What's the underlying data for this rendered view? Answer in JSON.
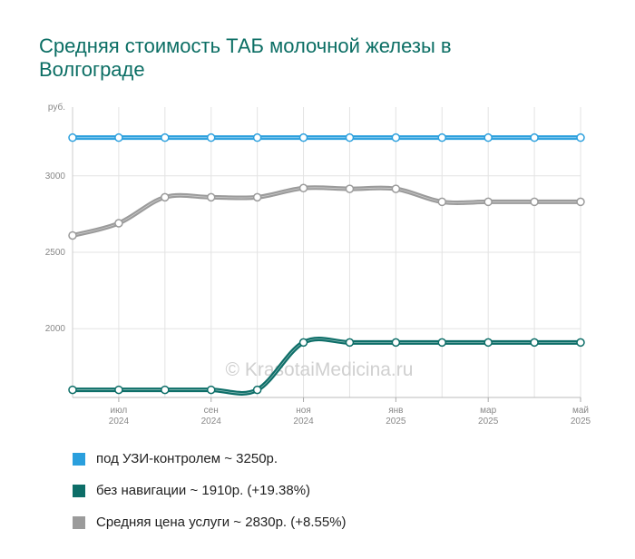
{
  "title": "Средняя стоимость ТАБ молочной железы в Волгограде",
  "watermark": "© KrasotaiMedicina.ru",
  "chart_data": {
    "type": "line",
    "y_unit_label": "руб.",
    "ylim": [
      1550,
      3450
    ],
    "y_ticks": [
      {
        "value": 2000,
        "label": "2000"
      },
      {
        "value": 2500,
        "label": "2500"
      },
      {
        "value": 3000,
        "label": "3000"
      }
    ],
    "x_ticks": [
      {
        "index": 1,
        "month": "июл",
        "year": "2024"
      },
      {
        "index": 3,
        "month": "сен",
        "year": "2024"
      },
      {
        "index": 5,
        "month": "ноя",
        "year": "2024"
      },
      {
        "index": 7,
        "month": "янв",
        "year": "2025"
      },
      {
        "index": 9,
        "month": "мар",
        "year": "2025"
      },
      {
        "index": 11,
        "month": "май",
        "year": "2025"
      }
    ],
    "point_count": 12,
    "grid": true,
    "series": [
      {
        "name": "под УЗИ-контролем",
        "color": "#2a9fdd",
        "values": [
          3250,
          3250,
          3250,
          3250,
          3250,
          3250,
          3250,
          3250,
          3250,
          3250,
          3250,
          3250
        ]
      },
      {
        "name": "Средняя цена услуги",
        "color": "#9b9b9b",
        "values": [
          2610,
          2690,
          2860,
          2860,
          2860,
          2920,
          2915,
          2915,
          2830,
          2830,
          2830,
          2830
        ]
      },
      {
        "name": "без навигации",
        "color": "#0d6e68",
        "values": [
          1600,
          1600,
          1600,
          1600,
          1600,
          1910,
          1910,
          1910,
          1910,
          1910,
          1910,
          1910
        ]
      }
    ]
  },
  "legend": [
    {
      "color": "#2a9fdd",
      "label": "под УЗИ-контролем ~ 3250р."
    },
    {
      "color": "#0d6e68",
      "label": "без навигации ~ 1910р. (+19.38%)"
    },
    {
      "color": "#9b9b9b",
      "label": "Средняя цена услуги ~ 2830р. (+8.55%)"
    }
  ]
}
